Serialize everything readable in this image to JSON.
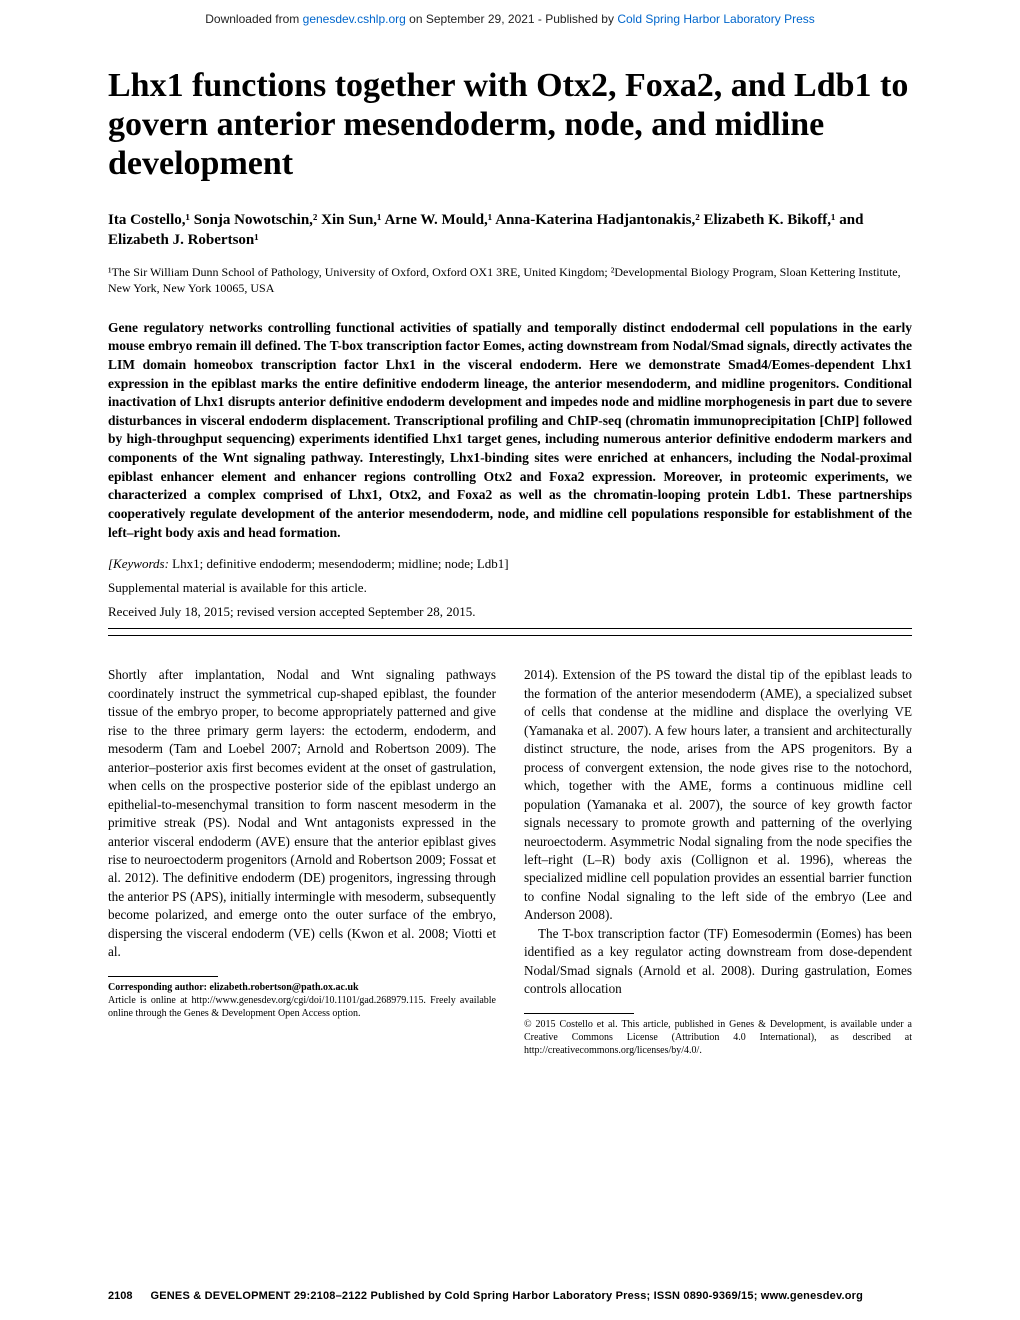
{
  "download_bar": {
    "pre": "Downloaded from ",
    "link1": "genesdev.cshlp.org",
    "mid": " on September 29, 2021 - Published by ",
    "link2": "Cold Spring Harbor Laboratory Press"
  },
  "title": "Lhx1 functions together with Otx2, Foxa2, and Ldb1 to govern anterior mesendoderm, node, and midline development",
  "authors_line": "Ita Costello,¹ Sonja Nowotschin,² Xin Sun,¹ Arne W. Mould,¹ Anna-Katerina Hadjantonakis,² Elizabeth K. Bikoff,¹ and Elizabeth J. Robertson¹",
  "affiliations": "¹The Sir William Dunn School of Pathology, University of Oxford, Oxford OX1 3RE, United Kingdom; ²Developmental Biology Program, Sloan Kettering Institute, New York, New York 10065, USA",
  "abstract": "Gene regulatory networks controlling functional activities of spatially and temporally distinct endodermal cell populations in the early mouse embryo remain ill defined. The T-box transcription factor Eomes, acting downstream from Nodal/Smad signals, directly activates the LIM domain homeobox transcription factor Lhx1 in the visceral endoderm. Here we demonstrate Smad4/Eomes-dependent Lhx1 expression in the epiblast marks the entire definitive endoderm lineage, the anterior mesendoderm, and midline progenitors. Conditional inactivation of Lhx1 disrupts anterior definitive endoderm development and impedes node and midline morphogenesis in part due to severe disturbances in visceral endoderm displacement. Transcriptional profiling and ChIP-seq (chromatin immunoprecipitation [ChIP] followed by high-throughput sequencing) experiments identified Lhx1 target genes, including numerous anterior definitive endoderm markers and components of the Wnt signaling pathway. Interestingly, Lhx1-binding sites were enriched at enhancers, including the Nodal-proximal epiblast enhancer element and enhancer regions controlling Otx2 and Foxa2 expression. Moreover, in proteomic experiments, we characterized a complex comprised of Lhx1, Otx2, and Foxa2 as well as the chromatin-looping protein Ldb1. These partnerships cooperatively regulate development of the anterior mesendoderm, node, and midline cell populations responsible for establishment of the left–right body axis and head formation.",
  "keywords_label": "[Keywords:",
  "keywords": "  Lhx1; definitive endoderm; mesendoderm; midline; node; Ldb1]",
  "supplemental": "Supplemental material is available for this article.",
  "received": "Received July 18, 2015; revised version accepted September 28, 2015.",
  "left_col_p1": "Shortly after implantation, Nodal and Wnt signaling pathways coordinately instruct the symmetrical cup-shaped epiblast, the founder tissue of the embryo proper, to become appropriately patterned and give rise to the three primary germ layers: the ectoderm, endoderm, and mesoderm (Tam and Loebel 2007; Arnold and Robertson 2009). The anterior–posterior axis first becomes evident at the onset of gastrulation, when cells on the prospective posterior side of the epiblast undergo an epithelial-to-mesenchymal transition to form nascent mesoderm in the primitive streak (PS). Nodal and Wnt antagonists expressed in the anterior visceral endoderm (AVE) ensure that the anterior epiblast gives rise to neuroectoderm progenitors (Arnold and Robertson 2009; Fossat et al. 2012). The definitive endoderm (DE) progenitors, ingressing through the anterior PS (APS), initially intermingle with mesoderm, subsequently become polarized, and emerge onto the outer surface of the embryo, dispersing the visceral endoderm (VE) cells (Kwon et al. 2008; Viotti et al.",
  "right_col_p1": "2014). Extension of the PS toward the distal tip of the epiblast leads to the formation of the anterior mesendoderm (AME), a specialized subset of cells that condense at the midline and displace the overlying VE (Yamanaka et al. 2007). A few hours later, a transient and architecturally distinct structure, the node, arises from the APS progenitors. By a process of convergent extension, the node gives rise to the notochord, which, together with the AME, forms a continuous midline cell population (Yamanaka et al. 2007), the source of key growth factor signals necessary to promote growth and patterning of the overlying neuroectoderm. Asymmetric Nodal signaling from the node specifies the left–right (L–R) body axis (Collignon et al. 1996), whereas the specialized midline cell population provides an essential barrier function to confine Nodal signaling to the left side of the embryo (Lee and Anderson 2008).",
  "right_col_p2": "The T-box transcription factor (TF) Eomesodermin (Eomes) has been identified as a key regulator acting downstream from dose-dependent Nodal/Smad signals (Arnold et al. 2008). During gastrulation, Eomes controls allocation",
  "footnote_left_corr_label": "Corresponding author: ",
  "footnote_left_corr_email": "elizabeth.robertson@path.ox.ac.uk",
  "footnote_left_article": "Article is online at http://www.genesdev.org/cgi/doi/10.1101/gad.268979.115. Freely available online through the Genes & Development Open Access option.",
  "footnote_right": "© 2015 Costello et al.    This article, published in Genes & Development, is available under a Creative Commons License (Attribution 4.0 International), as described at http://creativecommons.org/licenses/by/4.0/.",
  "footer": {
    "page": "2108",
    "line": "GENES & DEVELOPMENT 29:2108–2122 Published by Cold Spring Harbor Laboratory Press; ISSN 0890-9369/15; www.genesdev.org"
  }
}
